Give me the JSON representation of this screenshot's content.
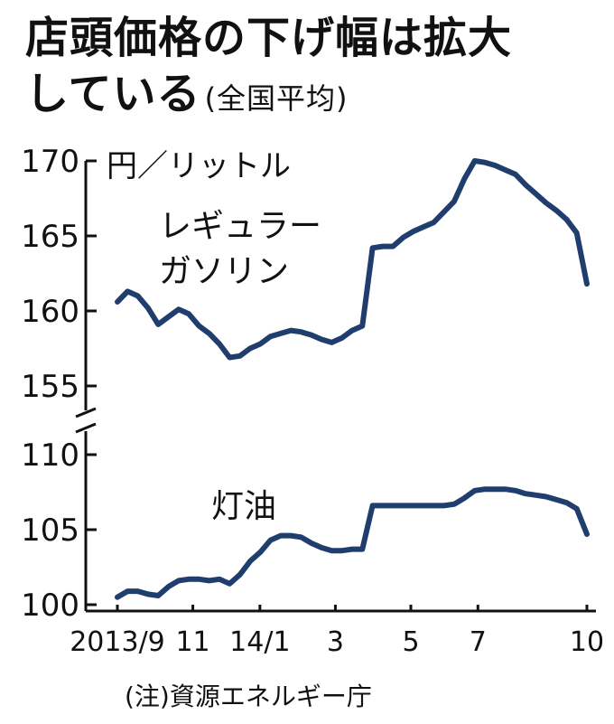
{
  "title": {
    "line1": "店頭価格の下げ幅は拡大",
    "line2": "している",
    "subtitle": "(全国平均)"
  },
  "unit": "円／リットル",
  "source": "(注)資源エネルギー庁",
  "chart_data": [
    {
      "type": "line",
      "series": [
        {
          "name": "レギュラーガソリン",
          "values": [
            160.6,
            161.3,
            161.0,
            160.2,
            159.1,
            159.6,
            160.1,
            159.8,
            159.0,
            158.5,
            157.8,
            156.9,
            157.0,
            157.5,
            157.8,
            158.3,
            158.5,
            158.7,
            158.6,
            158.4,
            158.1,
            157.9,
            158.2,
            158.7,
            159.0,
            164.2,
            164.3,
            164.3,
            164.9,
            165.3,
            165.6,
            165.9,
            166.6,
            167.3,
            168.8,
            170.0,
            169.9,
            169.7,
            169.4,
            169.1,
            168.4,
            167.8,
            167.2,
            166.7,
            166.1,
            165.2,
            161.8
          ]
        }
      ],
      "ylim": [
        155,
        170
      ],
      "yticks": [
        "170",
        "165",
        "160",
        "155"
      ]
    },
    {
      "type": "line",
      "series": [
        {
          "name": "灯油",
          "values": [
            100.5,
            100.9,
            100.9,
            100.7,
            100.6,
            101.2,
            101.6,
            101.7,
            101.7,
            101.6,
            101.7,
            101.4,
            102.0,
            102.9,
            103.5,
            104.3,
            104.6,
            104.6,
            104.5,
            104.1,
            103.8,
            103.6,
            103.6,
            103.7,
            103.7,
            106.6,
            106.6,
            106.6,
            106.6,
            106.6,
            106.6,
            106.6,
            106.6,
            106.7,
            107.1,
            107.6,
            107.7,
            107.7,
            107.7,
            107.6,
            107.4,
            107.3,
            107.2,
            107.0,
            106.8,
            106.4,
            104.7
          ]
        }
      ],
      "ylim": [
        100,
        110
      ],
      "yticks": [
        "110",
        "105",
        "100"
      ]
    }
  ],
  "x_axis": {
    "ticks": [
      "2013/9",
      "11",
      "14/1",
      "3",
      "5",
      "7",
      "10"
    ],
    "tick_weeks": [
      0,
      9,
      17,
      26,
      35,
      43,
      56
    ],
    "last_week": 56
  }
}
